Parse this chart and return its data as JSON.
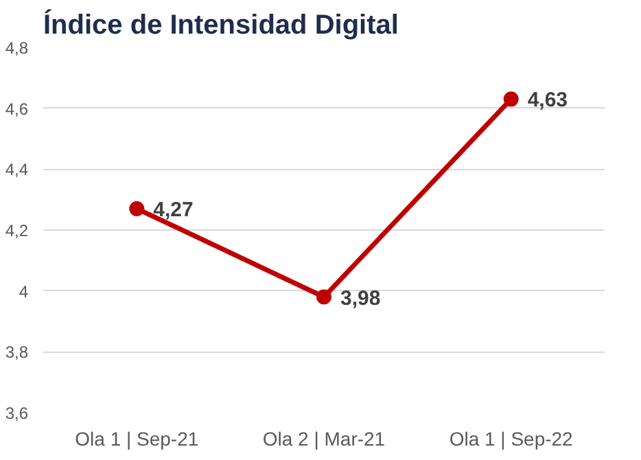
{
  "chart_data": {
    "type": "line",
    "title": "Índice de Intensidad Digital",
    "categories": [
      "Ola 1 | Sep-21",
      "Ola 2 | Mar-21",
      "Ola 1 | Sep-22"
    ],
    "series": [
      {
        "color": "#c00000",
        "values": [
          4.27,
          3.98,
          4.63
        ],
        "value_labels": [
          "4,27",
          "3,98",
          "4,63"
        ]
      }
    ],
    "ylim": [
      3.6,
      4.8
    ],
    "yticks": [
      {
        "value": 3.6,
        "label": "3,6"
      },
      {
        "value": 3.8,
        "label": "3,8"
      },
      {
        "value": 4,
        "label": "4"
      },
      {
        "value": 4.2,
        "label": "4,2"
      },
      {
        "value": 4.4,
        "label": "4,4"
      },
      {
        "value": 4.6,
        "label": "4,6"
      },
      {
        "value": 4.8,
        "label": "4,8"
      }
    ],
    "grid": "y",
    "marker": "circle",
    "line_style": "solid"
  }
}
